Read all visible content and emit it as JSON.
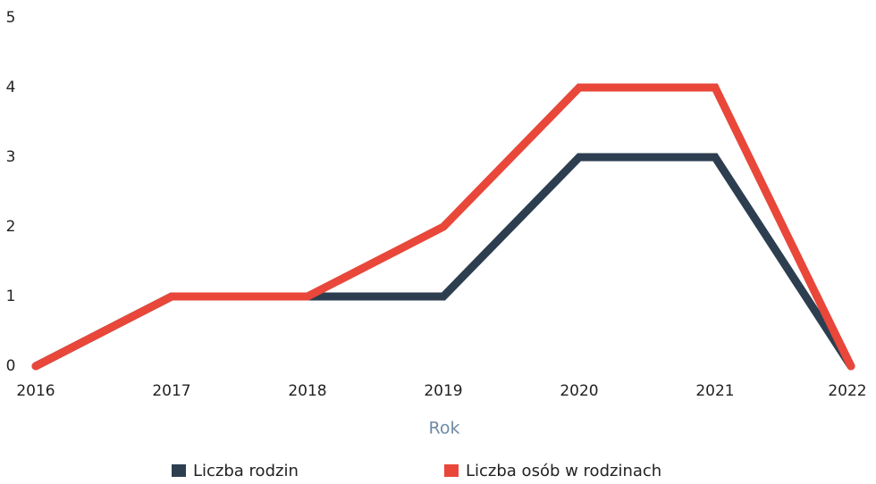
{
  "chart_data": {
    "type": "line",
    "x_label": "Rok",
    "x": [
      2016,
      2017,
      2018,
      2019,
      2020,
      2021,
      2022
    ],
    "xlim": [
      2016,
      2022
    ],
    "xticks": [
      2016,
      2017,
      2018,
      2019,
      2020,
      2021,
      2022
    ],
    "ylim": [
      0,
      5
    ],
    "yticks": [
      0,
      1,
      2,
      3,
      4,
      5
    ],
    "grid": false,
    "legend": "bottom",
    "series": [
      {
        "name": "Liczba rodzin",
        "color": "#2d3e50",
        "values": [
          0,
          1,
          1,
          1,
          3,
          3,
          0
        ]
      },
      {
        "name": "Liczba osób w rodzinach",
        "color": "#e8473a",
        "values": [
          0,
          1,
          1,
          2,
          4,
          4,
          0
        ]
      }
    ]
  }
}
